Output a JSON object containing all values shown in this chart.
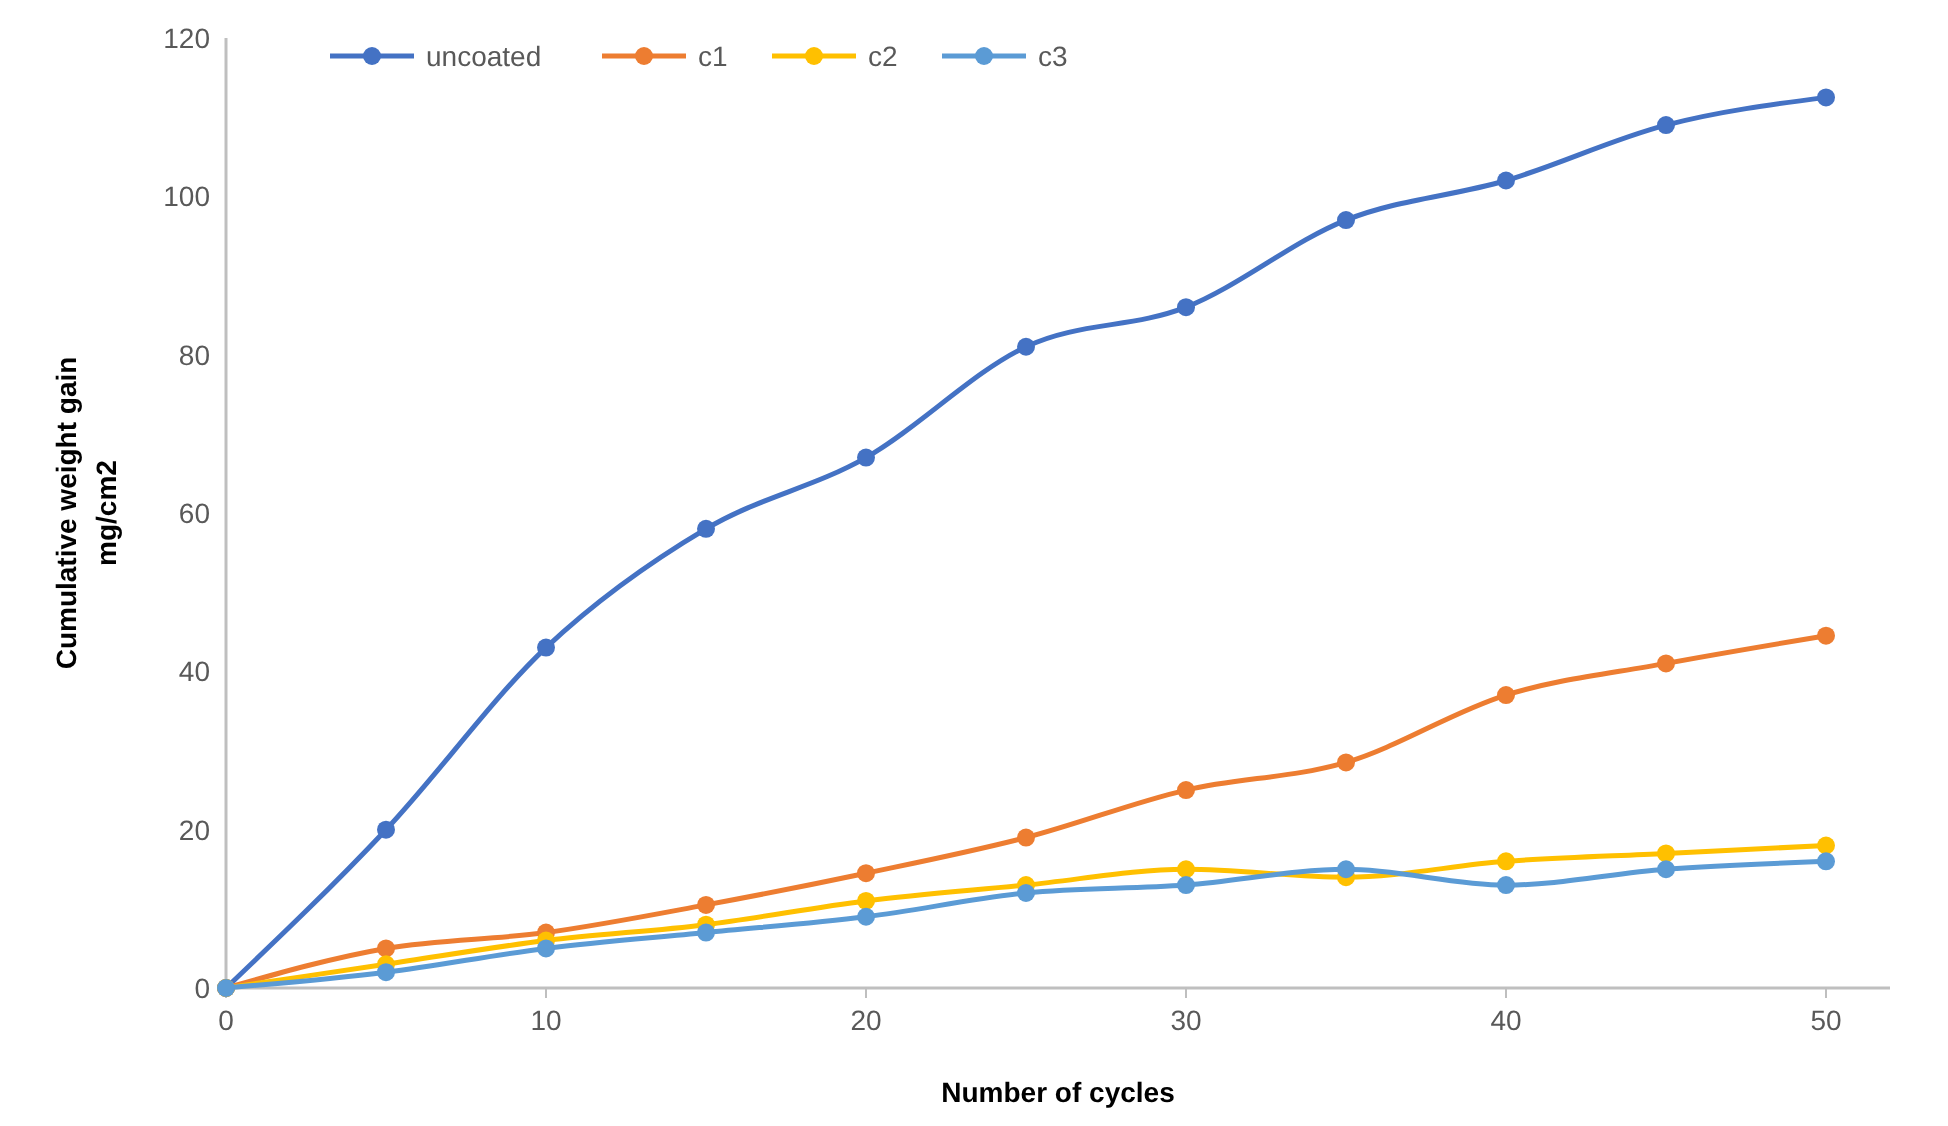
{
  "chart_data": {
    "type": "line",
    "xlabel": "Number of cycles",
    "ylabel": "Cumulative weight gain\nmg/cm2",
    "x": [
      0,
      5,
      10,
      15,
      20,
      25,
      30,
      35,
      40,
      45,
      50
    ],
    "xlim": [
      0,
      52
    ],
    "xticks": [
      0,
      10,
      20,
      30,
      40,
      50
    ],
    "ylim": [
      0,
      120
    ],
    "yticks": [
      0,
      20,
      40,
      60,
      80,
      100,
      120
    ],
    "grid": false,
    "legend": "top left",
    "marker": "circle",
    "line_style": "solid",
    "series": [
      {
        "name": "uncoated",
        "color": "#4472c4",
        "values": [
          0,
          20,
          43,
          58,
          67,
          81,
          86,
          97,
          102,
          109,
          112.5
        ]
      },
      {
        "name": "c1",
        "color": "#ed7d31",
        "values": [
          0,
          5,
          7,
          10.5,
          14.5,
          19,
          25,
          28.5,
          37,
          41,
          44.5
        ]
      },
      {
        "name": "c2",
        "color": "#ffc000",
        "values": [
          0,
          3,
          6,
          8,
          11,
          13,
          15,
          14,
          16,
          17,
          18
        ]
      },
      {
        "name": "c3",
        "color": "#5b9bd5",
        "values": [
          0,
          2,
          5,
          7,
          9,
          12,
          13,
          15,
          13,
          15,
          16
        ]
      }
    ]
  }
}
